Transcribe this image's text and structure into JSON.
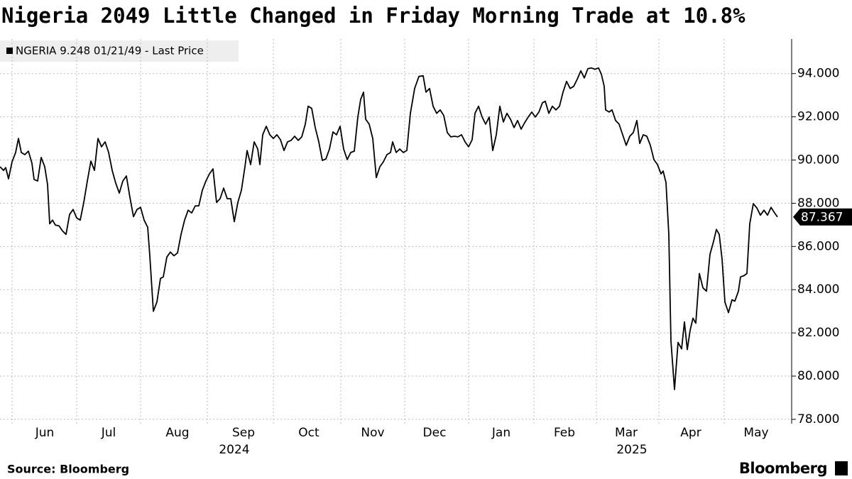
{
  "chart_data": {
    "type": "line",
    "title": "Nigeria 2049 Little Changed in Friday Morning Trade at 10.8%",
    "source": "Source: Bloomberg",
    "logo": "Bloomberg",
    "grid": true,
    "legend": "top-left",
    "xlim": [
      0,
      1110
    ],
    "ylim": [
      77.8,
      95.6
    ],
    "yticks": [
      {
        "value": 78,
        "label": "78.000"
      },
      {
        "value": 80,
        "label": "80.000"
      },
      {
        "value": 82,
        "label": "82.000"
      },
      {
        "value": 84,
        "label": "84.000"
      },
      {
        "value": 86,
        "label": "86.000"
      },
      {
        "value": 88,
        "label": "88.000"
      },
      {
        "value": 90,
        "label": "90.000"
      },
      {
        "value": 92,
        "label": "92.000"
      },
      {
        "value": 94,
        "label": "94.000"
      }
    ],
    "xticks": [
      {
        "value": 63,
        "label": "Jun"
      },
      {
        "value": 153,
        "label": "Jul"
      },
      {
        "value": 250,
        "label": "Aug"
      },
      {
        "value": 343,
        "label": "Sep"
      },
      {
        "value": 435,
        "label": "Oct"
      },
      {
        "value": 525,
        "label": "Nov"
      },
      {
        "value": 612,
        "label": "Dec"
      },
      {
        "value": 706,
        "label": "Jan"
      },
      {
        "value": 795,
        "label": "Feb"
      },
      {
        "value": 882,
        "label": "Mar"
      },
      {
        "value": 973,
        "label": "Apr"
      },
      {
        "value": 1065,
        "label": "May"
      }
    ],
    "xgrid": [
      17,
      108,
      198,
      292,
      385,
      480,
      570,
      660,
      752,
      840,
      928,
      1020
    ],
    "year_labels": [
      {
        "value": 330,
        "label": "2024"
      },
      {
        "value": 890,
        "label": "2025"
      }
    ],
    "last_price": 87.367,
    "series": [
      {
        "name": "NGERIA 9.248 01/21/49 - Last Price",
        "color": "#000000",
        "x": [
          0,
          5,
          8,
          12,
          17,
          22,
          26,
          30,
          35,
          40,
          45,
          48,
          53,
          58,
          63,
          67,
          70,
          74,
          78,
          83,
          88,
          93,
          98,
          103,
          108,
          113,
          118,
          123,
          128,
          133,
          138,
          143,
          148,
          153,
          158,
          163,
          168,
          173,
          178,
          183,
          188,
          193,
          198,
          203,
          208,
          211,
          216,
          221,
          226,
          230,
          235,
          240,
          245,
          250,
          255,
          260,
          265,
          270,
          275,
          280,
          285,
          290,
          295,
          300,
          305,
          310,
          315,
          320,
          325,
          330,
          335,
          340,
          345,
          348,
          353,
          358,
          363,
          366,
          370,
          375,
          380,
          385,
          390,
          395,
          400,
          405,
          410,
          415,
          420,
          425,
          430,
          434,
          439,
          444,
          449,
          454,
          459,
          464,
          469,
          474,
          479,
          484,
          489,
          494,
          499,
          504,
          508,
          512,
          515,
          520,
          525,
          530,
          535,
          540,
          545,
          550,
          553,
          558,
          563,
          568,
          573,
          578,
          584,
          590,
          596,
          600,
          605,
          610,
          615,
          620,
          625,
          630,
          635,
          640,
          645,
          650,
          655,
          660,
          665,
          669,
          674,
          679,
          684,
          689,
          694,
          699,
          704,
          709,
          714,
          719,
          724,
          729,
          734,
          739,
          744,
          749,
          754,
          759,
          764,
          768,
          773,
          778,
          783,
          788,
          793,
          798,
          803,
          808,
          813,
          818,
          823,
          828,
          833,
          838,
          843,
          847,
          851,
          853,
          858,
          862,
          867,
          872,
          877,
          882,
          887,
          892,
          897,
          901,
          906,
          911,
          916,
          921,
          926,
          931,
          934,
          938,
          942,
          945,
          950,
          955,
          960,
          964,
          968,
          972,
          976,
          980,
          985,
          990,
          995,
          1000,
          1005,
          1009,
          1013,
          1017,
          1021,
          1026,
          1031,
          1035,
          1040,
          1043,
          1048,
          1052,
          1056,
          1061,
          1066,
          1071,
          1076,
          1081,
          1086,
          1091,
          1095
        ],
        "values": [
          89.69,
          89.52,
          89.65,
          89.13,
          89.92,
          90.35,
          91.0,
          90.35,
          90.25,
          90.41,
          89.85,
          89.1,
          89.03,
          90.12,
          89.69,
          88.86,
          87.05,
          87.22,
          86.99,
          86.96,
          86.72,
          86.56,
          87.48,
          87.71,
          87.32,
          87.22,
          88.04,
          89.03,
          89.95,
          89.52,
          91.0,
          90.61,
          90.84,
          90.35,
          89.52,
          88.93,
          88.47,
          89.03,
          89.26,
          88.27,
          87.38,
          87.71,
          87.81,
          87.22,
          86.89,
          85.57,
          83.0,
          83.43,
          84.52,
          84.59,
          85.51,
          85.74,
          85.57,
          85.7,
          86.56,
          87.22,
          87.68,
          87.55,
          87.88,
          87.88,
          88.6,
          89.03,
          89.36,
          89.59,
          88.04,
          88.21,
          88.7,
          88.21,
          88.21,
          87.15,
          88.04,
          88.6,
          89.69,
          90.44,
          89.79,
          90.84,
          90.51,
          89.79,
          91.17,
          91.56,
          91.17,
          91.0,
          91.17,
          90.94,
          90.44,
          90.84,
          90.91,
          91.1,
          90.91,
          91.07,
          91.66,
          92.49,
          92.39,
          91.5,
          90.84,
          89.98,
          90.05,
          90.51,
          91.3,
          91.17,
          91.56,
          90.51,
          90.02,
          90.35,
          90.41,
          91.99,
          92.81,
          93.14,
          91.89,
          91.66,
          91.0,
          89.19,
          89.69,
          89.92,
          90.25,
          90.35,
          90.84,
          90.35,
          90.51,
          90.35,
          90.44,
          92.16,
          93.31,
          93.87,
          93.9,
          93.14,
          93.31,
          92.49,
          92.16,
          92.32,
          92.06,
          91.27,
          91.07,
          91.1,
          91.07,
          91.17,
          90.84,
          90.61,
          90.94,
          92.16,
          92.49,
          91.99,
          91.66,
          91.99,
          90.44,
          91.17,
          92.49,
          91.76,
          92.16,
          91.89,
          91.5,
          91.83,
          91.43,
          91.73,
          91.99,
          92.22,
          91.99,
          92.22,
          92.65,
          92.72,
          92.16,
          92.49,
          92.32,
          92.49,
          93.14,
          93.64,
          93.31,
          93.41,
          93.74,
          94.13,
          93.8,
          94.23,
          94.26,
          94.2,
          94.26,
          93.97,
          93.41,
          92.32,
          92.22,
          92.32,
          91.83,
          91.66,
          91.17,
          90.68,
          91.1,
          91.27,
          91.83,
          90.77,
          91.17,
          91.1,
          90.68,
          90.02,
          89.79,
          89.36,
          89.49,
          88.96,
          86.56,
          81.62,
          79.38,
          81.56,
          81.26,
          82.51,
          81.23,
          82.12,
          82.68,
          82.45,
          84.75,
          84.09,
          83.93,
          85.64,
          86.23,
          86.79,
          86.56,
          85.41,
          83.43,
          82.94,
          83.53,
          83.47,
          83.93,
          84.59,
          84.65,
          84.75,
          87.05,
          87.98,
          87.78,
          87.45,
          87.68,
          87.45,
          87.81,
          87.55,
          87.367
        ]
      }
    ]
  }
}
